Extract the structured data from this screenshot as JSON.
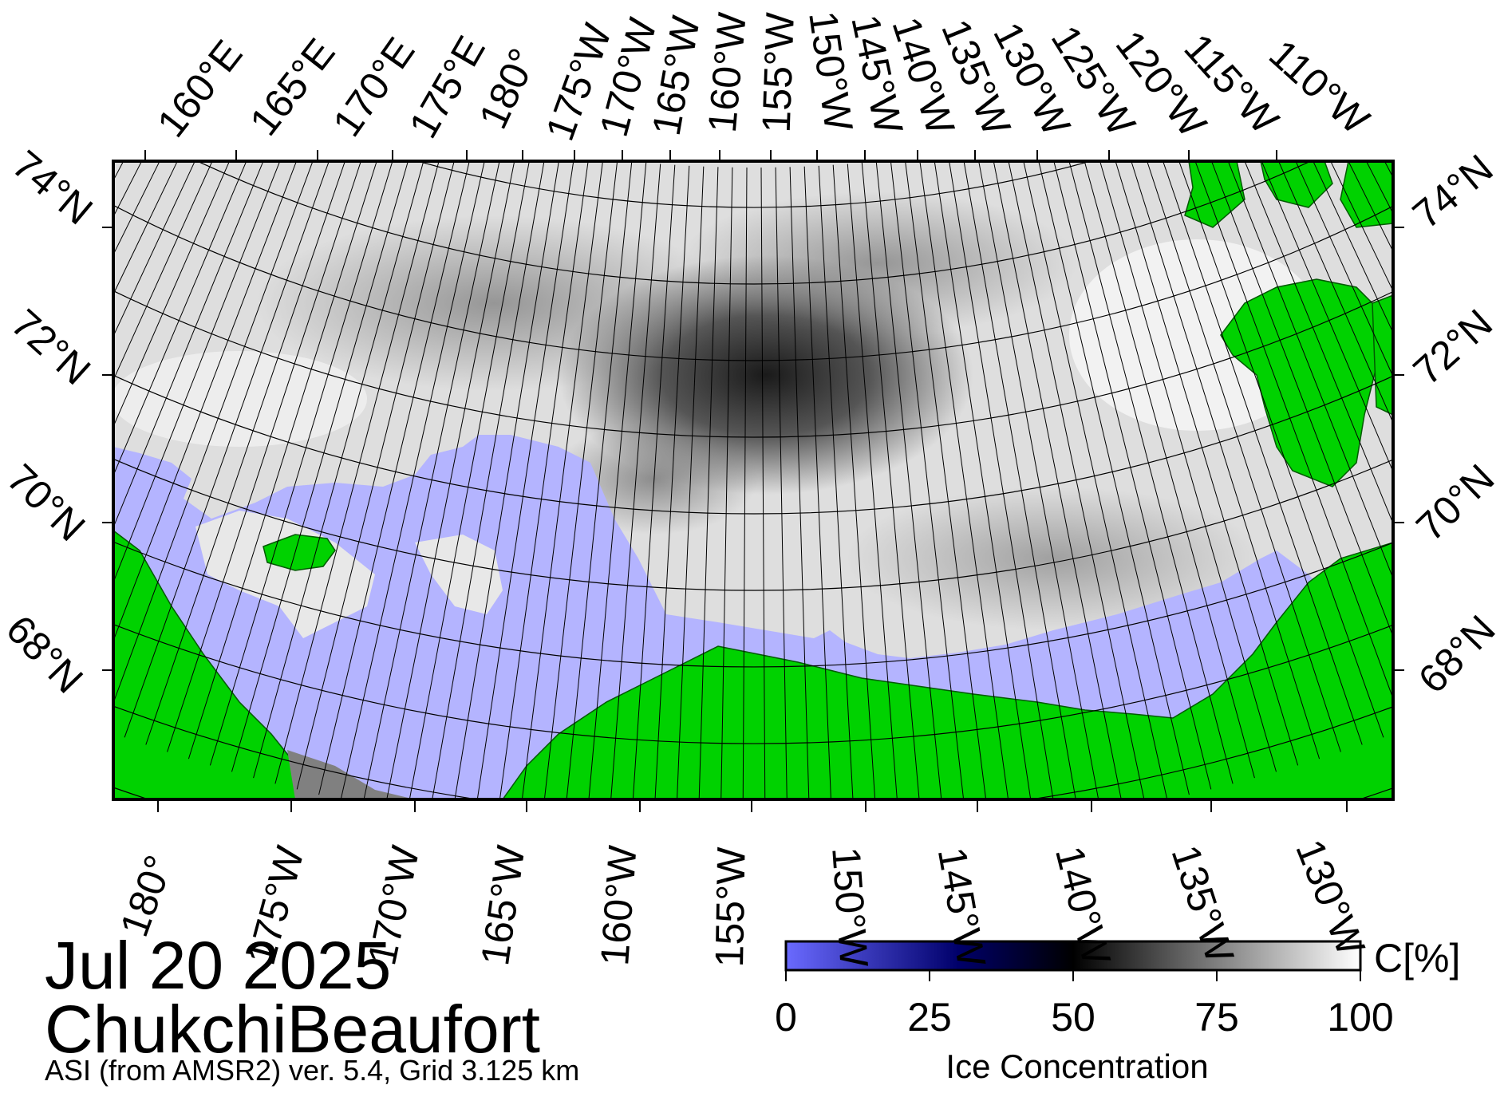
{
  "map": {
    "date": "Jul 20 2025",
    "region": "ChukchiBeaufort",
    "product": "ASI (from AMSR2) ver. 5.4,  Grid 3.125 km",
    "colors": {
      "land": "#00d200",
      "open_water": "#b4b4ff",
      "no_data": "#808080",
      "ice_low": "#6a6aff",
      "ice_mid": "#000000",
      "ice_high": "#ffffff"
    },
    "top_longitude_labels": [
      "160°E",
      "165°E",
      "170°E",
      "175°E",
      "180°",
      "175°W",
      "170°W",
      "165°W",
      "160°W",
      "155°W",
      "150°W",
      "145°W",
      "140°W",
      "135°W",
      "130°W",
      "125°W",
      "120°W",
      "115°W",
      "110°W"
    ],
    "bottom_longitude_labels": [
      "180°",
      "175°W",
      "170°W",
      "165°W",
      "160°W",
      "155°W",
      "150°W",
      "145°W",
      "140°W",
      "135°W",
      "130°W"
    ],
    "latitude_labels": [
      "74°N",
      "72°N",
      "70°N",
      "68°N"
    ]
  },
  "colorbar": {
    "title": "Ice Concentration",
    "unit": "C[%]",
    "ticks": [
      "0",
      "25",
      "50",
      "75",
      "100"
    ],
    "min": 0,
    "max": 100
  }
}
